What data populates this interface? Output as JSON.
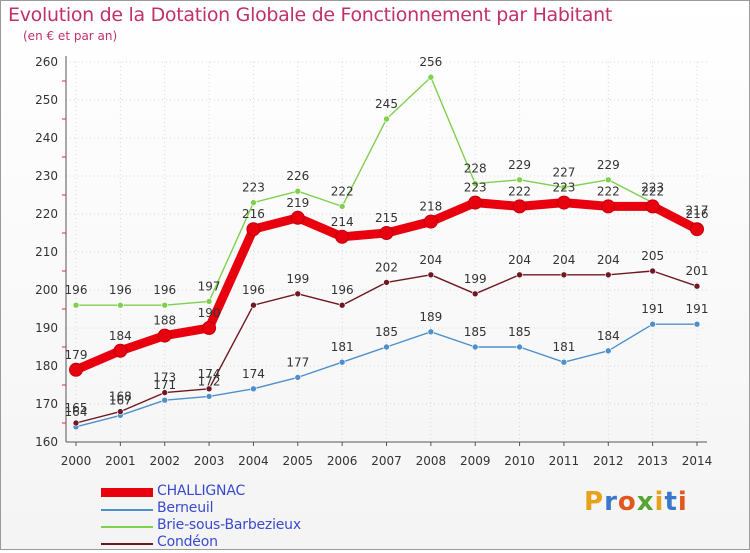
{
  "header": {
    "title": "Evolution de la Dotation Globale de Fonctionnement par Habitant",
    "subtitle": "(en € et par an)"
  },
  "logo": {
    "text": "Proxiti",
    "colors": [
      "#e6a21a",
      "#3b78c9",
      "#e2571e",
      "#56a532"
    ]
  },
  "chart_data": {
    "type": "line",
    "title": "Evolution de la Dotation Globale de Fonctionnement par Habitant",
    "subtitle": "(en € et par an)",
    "xlabel": "",
    "ylabel": "",
    "x": [
      "2000",
      "2001",
      "2002",
      "2003",
      "2004",
      "2005",
      "2006",
      "2007",
      "2008",
      "2009",
      "2010",
      "2011",
      "2012",
      "2013",
      "2014"
    ],
    "ylim": [
      160,
      260
    ],
    "yticks": [
      160,
      170,
      180,
      190,
      200,
      210,
      220,
      230,
      240,
      250,
      260
    ],
    "grid": true,
    "legend_position": "bottom-left",
    "series": [
      {
        "name": "CHALLIGNAC",
        "color": "#e8000e",
        "values": [
          179,
          184,
          188,
          190,
          216,
          219,
          214,
          215,
          218,
          223,
          222,
          223,
          222,
          222,
          216
        ]
      },
      {
        "name": "Berneuil",
        "color": "#4e90cc",
        "values": [
          164,
          167,
          171,
          172,
          174,
          177,
          181,
          185,
          189,
          185,
          185,
          181,
          184,
          191,
          191
        ]
      },
      {
        "name": "Brie-sous-Barbezieux",
        "color": "#7fd04f",
        "values": [
          196,
          196,
          196,
          197,
          223,
          226,
          222,
          245,
          256,
          228,
          229,
          227,
          229,
          223,
          217
        ]
      },
      {
        "name": "Condéon",
        "color": "#701822",
        "values": [
          165,
          168,
          173,
          174,
          196,
          199,
          196,
          202,
          204,
          199,
          204,
          204,
          204,
          205,
          201
        ]
      }
    ]
  }
}
